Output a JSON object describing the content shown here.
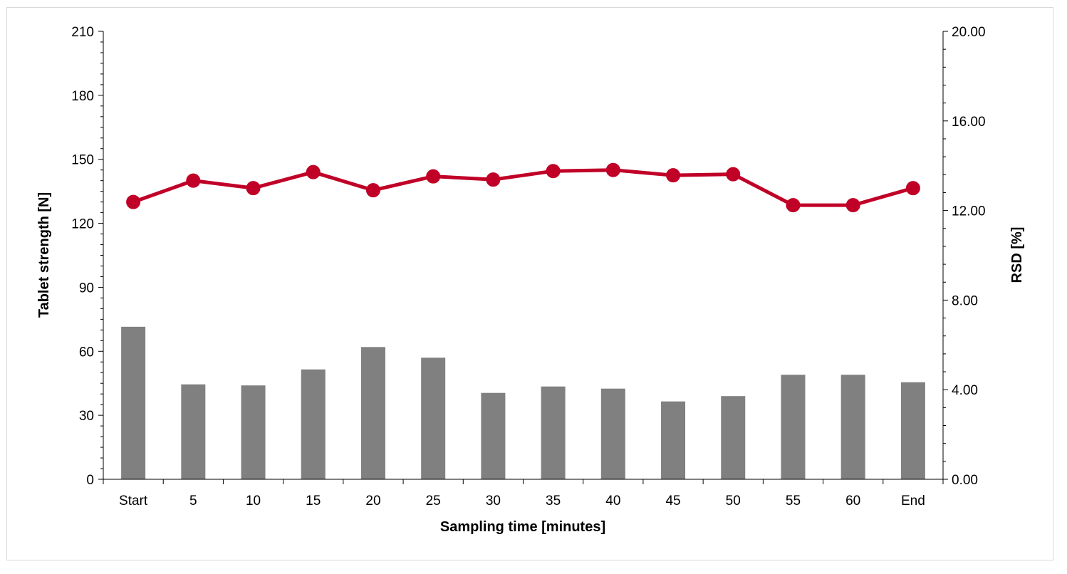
{
  "chart_data": {
    "type": "bar+line",
    "categories": [
      "Start",
      "5",
      "10",
      "15",
      "20",
      "25",
      "30",
      "35",
      "40",
      "45",
      "50",
      "55",
      "60",
      "End"
    ],
    "xlabel": "Sampling time [minutes]",
    "ylabel": "Tablet strength [N]",
    "ylabel_right": "RSD [%]",
    "ylim": [
      0,
      210
    ],
    "yticks": [
      0,
      30,
      60,
      90,
      120,
      150,
      180,
      210
    ],
    "ylim_right": [
      0,
      20
    ],
    "yticks_right": [
      "0.00",
      "4.00",
      "8.00",
      "12.00",
      "16.00",
      "20.00"
    ],
    "grid": false,
    "legend": "none",
    "series": [
      {
        "type": "bar",
        "axis": "left",
        "color": "#808080",
        "values": [
          71.5,
          44.5,
          44.0,
          51.5,
          62.0,
          57.0,
          40.5,
          43.5,
          42.5,
          36.5,
          39.0,
          49.0,
          49.0,
          45.5
        ]
      },
      {
        "type": "line",
        "axis": "left",
        "color": "#c00027",
        "values": [
          130,
          140,
          136.5,
          144,
          135.5,
          142,
          140.5,
          144.5,
          145,
          142.5,
          143,
          128.5,
          128.5,
          136.5
        ]
      }
    ]
  }
}
